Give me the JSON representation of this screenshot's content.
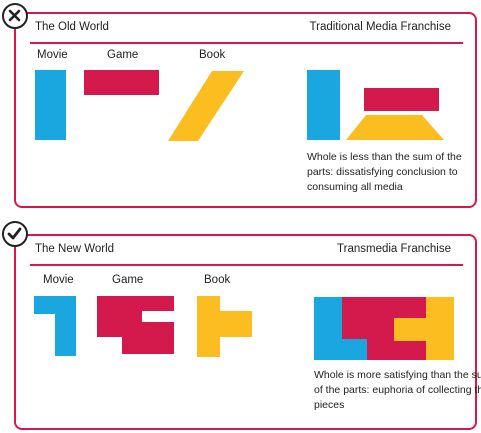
{
  "colors": {
    "frame": "#d41a4d",
    "movie": "#1aa7e0",
    "game": "#d41a4d",
    "book": "#fcbd21",
    "text": "#222222"
  },
  "old_world": {
    "status_icon": "x-icon",
    "title": "The Old World",
    "subtitle": "Traditional Media Franchise",
    "labels": {
      "movie": "Movie",
      "game": "Game",
      "book": "Book"
    },
    "caption": "Whole is less than the sum of the parts: dissatisfying conclusion to consuming all media"
  },
  "new_world": {
    "status_icon": "check-icon",
    "title": "The New World",
    "subtitle": "Transmedia  Franchise",
    "labels": {
      "movie": "Movie",
      "game": "Game",
      "book": "Book"
    },
    "caption": "Whole is more satisfying than the sum of the parts: euphoria of collecting the pieces"
  }
}
